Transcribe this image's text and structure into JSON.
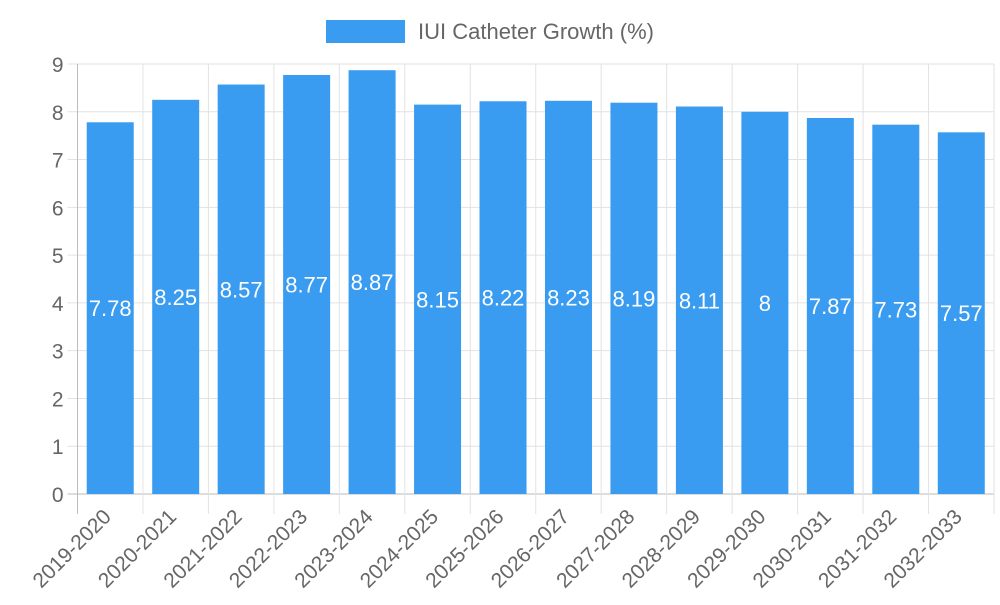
{
  "chart_data": {
    "type": "bar",
    "title": "",
    "xlabel": "",
    "ylabel": "",
    "ylim": [
      0,
      9
    ],
    "yticks": [
      0,
      1,
      2,
      3,
      4,
      5,
      6,
      7,
      8,
      9
    ],
    "grid": true,
    "legend_position": "top-center",
    "categories": [
      "2019-2020",
      "2020-2021",
      "2021-2022",
      "2022-2023",
      "2023-2024",
      "2024-2025",
      "2025-2026",
      "2026-2027",
      "2027-2028",
      "2028-2029",
      "2029-2030",
      "2030-2031",
      "2031-2032",
      "2032-2033"
    ],
    "series": [
      {
        "name": "IUI Catheter Growth (%)",
        "color": "#3a9cf0",
        "values": [
          7.78,
          8.25,
          8.57,
          8.77,
          8.87,
          8.15,
          8.22,
          8.23,
          8.19,
          8.11,
          8,
          7.87,
          7.73,
          7.57
        ],
        "labels": [
          "7.78",
          "8.25",
          "8.57",
          "8.77",
          "8.87",
          "8.15",
          "8.22",
          "8.23",
          "8.19",
          "8.11",
          "8",
          "7.87",
          "7.73",
          "7.57"
        ]
      }
    ]
  }
}
